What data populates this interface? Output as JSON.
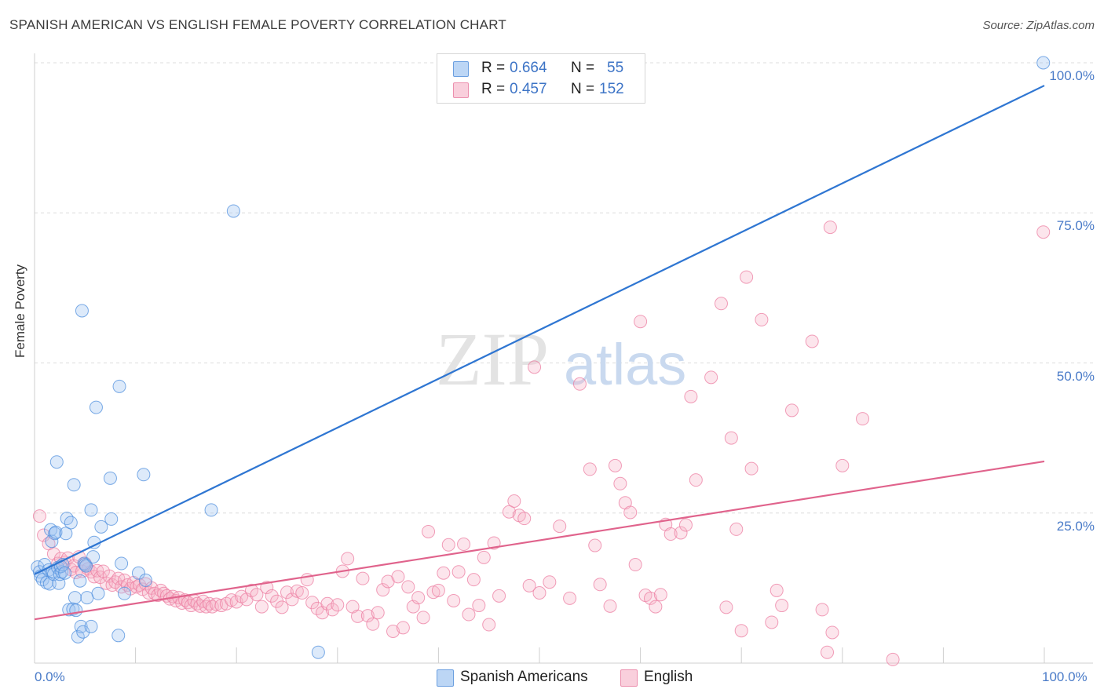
{
  "header": {
    "title": "SPANISH AMERICAN VS ENGLISH FEMALE POVERTY CORRELATION CHART",
    "source": "Source: ZipAtlas.com"
  },
  "watermark": {
    "part1": "ZIP",
    "part2": "atlas"
  },
  "stats": [
    {
      "r_label": "R =",
      "r_value": "0.664",
      "n_label": "N =",
      "n_value": "55",
      "color": "#9ec4f1"
    },
    {
      "r_label": "R =",
      "r_value": "0.457",
      "n_label": "N =",
      "n_value": "152",
      "color": "#f6b5c9"
    }
  ],
  "legend": [
    "Spanish Americans",
    "English"
  ],
  "chart_data": {
    "type": "scatter",
    "title": "SPANISH AMERICAN VS ENGLISH FEMALE POVERTY CORRELATION CHART",
    "xlabel": "",
    "ylabel": "Female Poverty",
    "xlim": [
      0,
      100
    ],
    "ylim": [
      0,
      100
    ],
    "x_tick_labels": [
      "0.0%",
      "100.0%"
    ],
    "y_tick_labels": [
      "25.0%",
      "50.0%",
      "75.0%",
      "100.0%"
    ],
    "y_ticks": [
      25,
      50,
      75,
      100
    ],
    "grid": true,
    "colors": {
      "spanish": "#4f8fde",
      "english": "#ec7ea1",
      "spanish_line": "#2f76d2",
      "english_line": "#e0638c"
    },
    "series": [
      {
        "name": "Spanish Americans",
        "r": 0.664,
        "n": 55,
        "trend": {
          "x": [
            0,
            100
          ],
          "y": [
            14.8,
            96.2
          ]
        },
        "points": [
          [
            0.3,
            16
          ],
          [
            0.5,
            15.2
          ],
          [
            0.6,
            14.5
          ],
          [
            0.8,
            13.9
          ],
          [
            1.0,
            16.4
          ],
          [
            1.2,
            13.4
          ],
          [
            1.4,
            15.5
          ],
          [
            1.5,
            13.2
          ],
          [
            1.7,
            20.3
          ],
          [
            1.8,
            15.3
          ],
          [
            1.6,
            22.2
          ],
          [
            1.9,
            14.8
          ],
          [
            2.0,
            21.6
          ],
          [
            2.1,
            21.8
          ],
          [
            2.2,
            33.5
          ],
          [
            2.3,
            15.9
          ],
          [
            2.4,
            13.3
          ],
          [
            2.5,
            14.8
          ],
          [
            2.7,
            15.2
          ],
          [
            2.6,
            16.1
          ],
          [
            2.8,
            16.4
          ],
          [
            3.0,
            15.0
          ],
          [
            3.1,
            21.6
          ],
          [
            3.2,
            24.1
          ],
          [
            3.4,
            8.9
          ],
          [
            3.6,
            23.4
          ],
          [
            3.8,
            9.0
          ],
          [
            3.9,
            29.7
          ],
          [
            4.0,
            10.9
          ],
          [
            4.1,
            8.8
          ],
          [
            4.3,
            4.4
          ],
          [
            4.5,
            13.7
          ],
          [
            4.6,
            6.1
          ],
          [
            4.8,
            5.2
          ],
          [
            4.9,
            16.6
          ],
          [
            5.0,
            16.4
          ],
          [
            5.1,
            16.2
          ],
          [
            4.7,
            58.7
          ],
          [
            5.2,
            10.9
          ],
          [
            5.6,
            6.1
          ],
          [
            5.6,
            25.5
          ],
          [
            5.8,
            17.7
          ],
          [
            5.9,
            20.1
          ],
          [
            6.1,
            42.6
          ],
          [
            6.3,
            11.6
          ],
          [
            6.6,
            22.7
          ],
          [
            7.5,
            30.8
          ],
          [
            7.6,
            24.0
          ],
          [
            8.3,
            4.6
          ],
          [
            8.4,
            46.1
          ],
          [
            8.6,
            16.6
          ],
          [
            8.9,
            11.6
          ],
          [
            10.8,
            31.4
          ],
          [
            17.5,
            25.5
          ],
          [
            19.7,
            75.3
          ],
          [
            28.1,
            1.8
          ],
          [
            10.3,
            15
          ],
          [
            11.0,
            13.8
          ],
          [
            99.9,
            100
          ]
        ]
      },
      {
        "name": "English",
        "r": 0.457,
        "n": 152,
        "trend": {
          "x": [
            0,
            100
          ],
          "y": [
            7.3,
            33.6
          ]
        },
        "points": [
          [
            0.5,
            24.5
          ],
          [
            0.9,
            21.3
          ],
          [
            1.4,
            19.9
          ],
          [
            1.9,
            18.2
          ],
          [
            2.3,
            16.6
          ],
          [
            2.6,
            17.4
          ],
          [
            3.0,
            16.8
          ],
          [
            3.3,
            17.5
          ],
          [
            3.6,
            15.6
          ],
          [
            3.9,
            16.2
          ],
          [
            4.1,
            15.1
          ],
          [
            4.4,
            17.7
          ],
          [
            4.7,
            15.3
          ],
          [
            5.0,
            16.6
          ],
          [
            5.3,
            15.7
          ],
          [
            5.6,
            15.2
          ],
          [
            5.9,
            14.4
          ],
          [
            6.2,
            15.4
          ],
          [
            6.5,
            14.3
          ],
          [
            6.8,
            15.3
          ],
          [
            7.1,
            13.3
          ],
          [
            7.4,
            14.5
          ],
          [
            7.7,
            13.0
          ],
          [
            8.0,
            13.5
          ],
          [
            8.3,
            14.1
          ],
          [
            8.6,
            12.7
          ],
          [
            8.9,
            13.8
          ],
          [
            9.2,
            13.0
          ],
          [
            9.5,
            12.4
          ],
          [
            9.8,
            13.4
          ],
          [
            10.1,
            12.7
          ],
          [
            10.4,
            13.0
          ],
          [
            10.7,
            12.3
          ],
          [
            11.0,
            13.2
          ],
          [
            11.3,
            11.7
          ],
          [
            11.6,
            12.5
          ],
          [
            11.9,
            11.6
          ],
          [
            12.2,
            11.3
          ],
          [
            12.5,
            12.1
          ],
          [
            12.8,
            11.6
          ],
          [
            13.1,
            11.2
          ],
          [
            13.4,
            10.7
          ],
          [
            13.7,
            11.1
          ],
          [
            14.0,
            10.4
          ],
          [
            14.3,
            10.9
          ],
          [
            14.6,
            10.0
          ],
          [
            14.9,
            10.5
          ],
          [
            15.2,
            10.1
          ],
          [
            15.5,
            9.6
          ],
          [
            15.8,
            10.4
          ],
          [
            16.1,
            9.9
          ],
          [
            16.4,
            9.5
          ],
          [
            16.7,
            10.3
          ],
          [
            17.0,
            9.4
          ],
          [
            17.3,
            9.9
          ],
          [
            17.6,
            9.4
          ],
          [
            18.0,
            9.8
          ],
          [
            18.5,
            9.6
          ],
          [
            19.0,
            9.9
          ],
          [
            19.5,
            10.5
          ],
          [
            20.0,
            10.2
          ],
          [
            20.5,
            11.1
          ],
          [
            21.0,
            10.6
          ],
          [
            21.5,
            12.1
          ],
          [
            22.0,
            11.4
          ],
          [
            22.5,
            9.4
          ],
          [
            23.0,
            12.6
          ],
          [
            23.5,
            11.2
          ],
          [
            24.0,
            10.3
          ],
          [
            24.5,
            9.3
          ],
          [
            25.0,
            11.8
          ],
          [
            25.5,
            10.6
          ],
          [
            26.0,
            12.0
          ],
          [
            26.5,
            11.7
          ],
          [
            27.0,
            13.9
          ],
          [
            27.5,
            10.1
          ],
          [
            28.0,
            9.1
          ],
          [
            28.5,
            8.4
          ],
          [
            29.0,
            9.9
          ],
          [
            29.5,
            8.9
          ],
          [
            30.0,
            9.7
          ],
          [
            30.5,
            15.3
          ],
          [
            31.0,
            17.4
          ],
          [
            31.5,
            9.4
          ],
          [
            32.0,
            7.8
          ],
          [
            32.5,
            14.1
          ],
          [
            33.0,
            7.9
          ],
          [
            33.5,
            6.5
          ],
          [
            34.0,
            8.4
          ],
          [
            34.5,
            12.2
          ],
          [
            35.0,
            13.6
          ],
          [
            35.5,
            5.3
          ],
          [
            36.0,
            14.4
          ],
          [
            36.5,
            5.9
          ],
          [
            37.0,
            12.7
          ],
          [
            37.5,
            9.4
          ],
          [
            38.0,
            10.9
          ],
          [
            38.5,
            7.6
          ],
          [
            39.0,
            21.9
          ],
          [
            39.5,
            11.8
          ],
          [
            40.0,
            12.1
          ],
          [
            40.5,
            15
          ],
          [
            41.0,
            19.7
          ],
          [
            41.5,
            10.4
          ],
          [
            42.0,
            15.2
          ],
          [
            42.5,
            19.8
          ],
          [
            43.0,
            8.1
          ],
          [
            43.5,
            13.9
          ],
          [
            44.0,
            9.6
          ],
          [
            44.5,
            17.6
          ],
          [
            45.0,
            6.4
          ],
          [
            45.5,
            20
          ],
          [
            46.0,
            11.2
          ],
          [
            47.0,
            25.2
          ],
          [
            47.5,
            27
          ],
          [
            48.0,
            24.6
          ],
          [
            48.5,
            24.1
          ],
          [
            49.0,
            12.9
          ],
          [
            49.5,
            49.3
          ],
          [
            50.0,
            11.7
          ],
          [
            51.0,
            13.5
          ],
          [
            52.0,
            22.8
          ],
          [
            53.0,
            10.8
          ],
          [
            54.0,
            46.5
          ],
          [
            55.0,
            32.3
          ],
          [
            55.5,
            19.6
          ],
          [
            56.0,
            13.1
          ],
          [
            57.0,
            9.5
          ],
          [
            57.5,
            32.9
          ],
          [
            58.0,
            29.9
          ],
          [
            58.5,
            26.7
          ],
          [
            59.0,
            25.1
          ],
          [
            59.5,
            16.4
          ],
          [
            60.0,
            56.9
          ],
          [
            60.5,
            11.3
          ],
          [
            61.0,
            10.8
          ],
          [
            61.5,
            9.4
          ],
          [
            62.0,
            11.4
          ],
          [
            62.5,
            23.1
          ],
          [
            63.0,
            21.5
          ],
          [
            64.0,
            21.7
          ],
          [
            64.5,
            23
          ],
          [
            65.0,
            44.4
          ],
          [
            65.5,
            30.5
          ],
          [
            67.0,
            47.6
          ],
          [
            68.0,
            59.9
          ],
          [
            68.5,
            9.3
          ],
          [
            69.0,
            37.5
          ],
          [
            69.5,
            22.3
          ],
          [
            70.0,
            5.4
          ],
          [
            70.5,
            64.3
          ],
          [
            71.0,
            32.4
          ],
          [
            72.0,
            57.2
          ],
          [
            73.0,
            6.8
          ],
          [
            73.5,
            12.1
          ],
          [
            74.0,
            9.6
          ],
          [
            75.0,
            42.1
          ],
          [
            77.0,
            53.6
          ],
          [
            78.0,
            8.9
          ],
          [
            78.5,
            1.8
          ],
          [
            78.8,
            72.6
          ],
          [
            79.0,
            5.1
          ],
          [
            80.0,
            32.9
          ],
          [
            82.0,
            40.7
          ],
          [
            85.0,
            0.6
          ],
          [
            99.9,
            71.8
          ]
        ]
      }
    ]
  }
}
